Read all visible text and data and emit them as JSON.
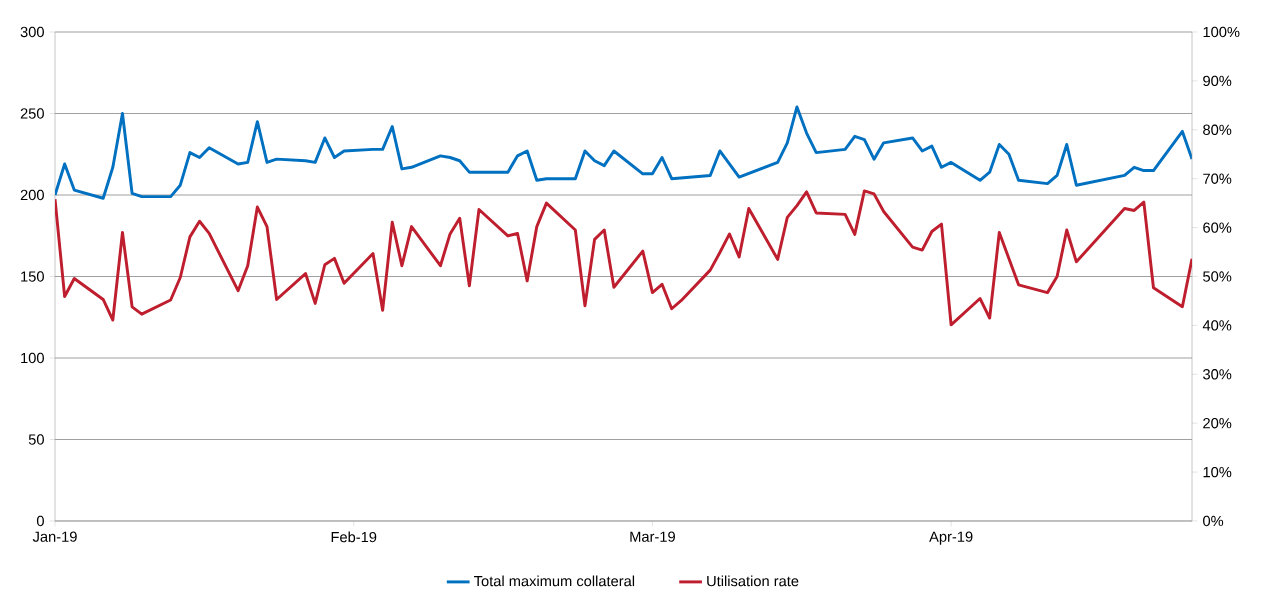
{
  "chart_data": {
    "type": "line",
    "xlim": [
      "2019-01-02",
      "2019-04-30"
    ],
    "xticks": [
      {
        "value": "2019-01-02",
        "label": "Jan-19"
      },
      {
        "value": "2019-02-02",
        "label": "Feb-19"
      },
      {
        "value": "2019-03-05",
        "label": "Mar-19"
      },
      {
        "value": "2019-04-05",
        "label": "Apr-19"
      }
    ],
    "ylim": [
      0,
      300
    ],
    "yticks": [
      0,
      50,
      100,
      150,
      200,
      250,
      300
    ],
    "y2lim": [
      0,
      100
    ],
    "y2ticks": [
      {
        "value": 0,
        "label": "0%"
      },
      {
        "value": 10,
        "label": "10%"
      },
      {
        "value": 20,
        "label": "20%"
      },
      {
        "value": 30,
        "label": "30%"
      },
      {
        "value": 40,
        "label": "40%"
      },
      {
        "value": 50,
        "label": "50%"
      },
      {
        "value": 60,
        "label": "60%"
      },
      {
        "value": 70,
        "label": "70%"
      },
      {
        "value": 80,
        "label": "80%"
      },
      {
        "value": 90,
        "label": "90%"
      },
      {
        "value": 100,
        "label": "100%"
      }
    ],
    "grid": "y",
    "legend": "bottom",
    "series": [
      {
        "name": "Total maximum collateral",
        "color": "#0070c0",
        "x": [
          "2019-01-02",
          "2019-01-03",
          "2019-01-04",
          "2019-01-07",
          "2019-01-08",
          "2019-01-09",
          "2019-01-10",
          "2019-01-11",
          "2019-01-14",
          "2019-01-15",
          "2019-01-16",
          "2019-01-17",
          "2019-01-18",
          "2019-01-21",
          "2019-01-22",
          "2019-01-23",
          "2019-01-24",
          "2019-01-25",
          "2019-01-28",
          "2019-01-29",
          "2019-01-30",
          "2019-01-31",
          "2019-02-01",
          "2019-02-04",
          "2019-02-05",
          "2019-02-06",
          "2019-02-07",
          "2019-02-08",
          "2019-02-11",
          "2019-02-12",
          "2019-02-13",
          "2019-02-14",
          "2019-02-18",
          "2019-02-19",
          "2019-02-20",
          "2019-02-21",
          "2019-02-22",
          "2019-02-25",
          "2019-02-26",
          "2019-02-27",
          "2019-02-28",
          "2019-03-01",
          "2019-03-04",
          "2019-03-05",
          "2019-03-06",
          "2019-03-07",
          "2019-03-11",
          "2019-03-12",
          "2019-03-14",
          "2019-03-18",
          "2019-03-19",
          "2019-03-20",
          "2019-03-21",
          "2019-03-22",
          "2019-03-25",
          "2019-03-26",
          "2019-03-27",
          "2019-03-28",
          "2019-03-29",
          "2019-04-01",
          "2019-04-02",
          "2019-04-03",
          "2019-04-04",
          "2019-04-05",
          "2019-04-08",
          "2019-04-09",
          "2019-04-10",
          "2019-04-11",
          "2019-04-12",
          "2019-04-15",
          "2019-04-16",
          "2019-04-17",
          "2019-04-18",
          "2019-04-23",
          "2019-04-24",
          "2019-04-25",
          "2019-04-26",
          "2019-04-29",
          "2019-04-30"
        ],
        "values": [
          200,
          219,
          203,
          198,
          217,
          250,
          201,
          199,
          199,
          206,
          226,
          223,
          229,
          219,
          220,
          245,
          220,
          222,
          221,
          220,
          235,
          223,
          227,
          228,
          228,
          242,
          216,
          217,
          224,
          223,
          221,
          214,
          214,
          224,
          227,
          209,
          210,
          210,
          227,
          221,
          218,
          227,
          213,
          213,
          223,
          210,
          212,
          227,
          211,
          220,
          232,
          254,
          238,
          226,
          228,
          236,
          234,
          222,
          232,
          235,
          227,
          230,
          217,
          220,
          209,
          214,
          231,
          225,
          209,
          207,
          212,
          231,
          206,
          212,
          217,
          215,
          215,
          239,
          222
        ]
      },
      {
        "name": "Utilisation rate",
        "color": "#be1e2d",
        "axis": "y2",
        "x": [
          "2019-01-02",
          "2019-01-03",
          "2019-01-04",
          "2019-01-07",
          "2019-01-08",
          "2019-01-09",
          "2019-01-10",
          "2019-01-11",
          "2019-01-14",
          "2019-01-15",
          "2019-01-16",
          "2019-01-17",
          "2019-01-18",
          "2019-01-21",
          "2019-01-22",
          "2019-01-23",
          "2019-01-24",
          "2019-01-25",
          "2019-01-28",
          "2019-01-29",
          "2019-01-30",
          "2019-01-31",
          "2019-02-01",
          "2019-02-04",
          "2019-02-05",
          "2019-02-06",
          "2019-02-07",
          "2019-02-08",
          "2019-02-11",
          "2019-02-12",
          "2019-02-13",
          "2019-02-14",
          "2019-02-15",
          "2019-02-18",
          "2019-02-19",
          "2019-02-20",
          "2019-02-21",
          "2019-02-22",
          "2019-02-25",
          "2019-02-26",
          "2019-02-27",
          "2019-02-28",
          "2019-03-01",
          "2019-03-04",
          "2019-03-05",
          "2019-03-06",
          "2019-03-07",
          "2019-03-08",
          "2019-03-11",
          "2019-03-12",
          "2019-03-13",
          "2019-03-14",
          "2019-03-15",
          "2019-03-18",
          "2019-03-19",
          "2019-03-20",
          "2019-03-21",
          "2019-03-22",
          "2019-03-25",
          "2019-03-26",
          "2019-03-27",
          "2019-03-28",
          "2019-03-29",
          "2019-04-01",
          "2019-04-02",
          "2019-04-03",
          "2019-04-04",
          "2019-04-05",
          "2019-04-08",
          "2019-04-09",
          "2019-04-10",
          "2019-04-12",
          "2019-04-15",
          "2019-04-16",
          "2019-04-17",
          "2019-04-18",
          "2019-04-23",
          "2019-04-24",
          "2019-04-25",
          "2019-04-26",
          "2019-04-29",
          "2019-04-30"
        ],
        "values": [
          65.8,
          45.9,
          49.6,
          45.3,
          41.1,
          59.0,
          43.8,
          42.3,
          45.2,
          49.8,
          58.1,
          61.3,
          58.8,
          47.1,
          52.2,
          64.2,
          60.2,
          45.3,
          50.6,
          44.5,
          52.4,
          53.7,
          48.6,
          54.7,
          43.1,
          61.1,
          52.2,
          60.2,
          52.2,
          58.7,
          61.9,
          48.1,
          63.7,
          58.3,
          58.8,
          49.1,
          60.2,
          65.0,
          59.5,
          44.0,
          57.6,
          59.5,
          47.8,
          55.2,
          46.7,
          48.4,
          43.4,
          45.1,
          51.3,
          54.9,
          58.7,
          54.0,
          63.9,
          53.5,
          62.1,
          64.5,
          67.3,
          63.0,
          62.7,
          58.6,
          67.5,
          66.9,
          63.3,
          56.0,
          55.4,
          59.2,
          60.7,
          40.1,
          45.5,
          41.5,
          59.0,
          48.3,
          46.7,
          50.0,
          59.5,
          53.0,
          63.9,
          63.5,
          65.2,
          47.7,
          43.8,
          53.6
        ]
      }
    ]
  }
}
